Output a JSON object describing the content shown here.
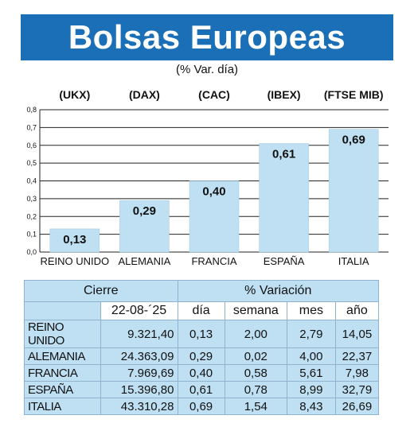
{
  "title": "Bolsas Europeas",
  "subtitle": "(% Var. día)",
  "chart_data": {
    "type": "bar",
    "categories": [
      "REINO UNIDO",
      "ALEMANIA",
      "FRANCIA",
      "ESPAÑA",
      "ITALIA"
    ],
    "index_labels": [
      "(UKX)",
      "(DAX)",
      "(CAC)",
      "(IBEX)",
      "(FTSE MIB)"
    ],
    "values": [
      0.13,
      0.29,
      0.4,
      0.61,
      0.69
    ],
    "value_labels": [
      "0,13",
      "0,29",
      "0,40",
      "0,61",
      "0,69"
    ],
    "ylim": [
      0,
      0.8
    ],
    "y_ticks": [
      "0,0",
      "0,1",
      "0,2",
      "0,3",
      "0,4",
      "0,5",
      "0,6",
      "0,7",
      "0,8"
    ],
    "grid": true,
    "bar_color": "#bfe0f2"
  },
  "table": {
    "header_cierre": "Cierre",
    "header_variacion": "% Variación",
    "date": "22-08-´25",
    "col_dia": "día",
    "col_semana": "semana",
    "col_mes": "mes",
    "col_anio": "año",
    "rows": [
      {
        "name": "REINO UNIDO",
        "cierre": "9.321,40",
        "dia": "0,13",
        "semana": "2,00",
        "mes": "2,79",
        "anio": "14,05"
      },
      {
        "name": "ALEMANIA",
        "cierre": "24.363,09",
        "dia": "0,29",
        "semana": "0,02",
        "mes": "4,00",
        "anio": "22,37"
      },
      {
        "name": "FRANCIA",
        "cierre": "7.969,69",
        "dia": "0,40",
        "semana": "0,58",
        "mes": "5,61",
        "anio": "7,98"
      },
      {
        "name": "ESPAÑA",
        "cierre": "15.396,80",
        "dia": "0,61",
        "semana": "0,78",
        "mes": "8,99",
        "anio": "32,79"
      },
      {
        "name": "ITALIA",
        "cierre": "43.310,28",
        "dia": "0,69",
        "semana": "1,54",
        "mes": "8,43",
        "anio": "26,69"
      }
    ]
  },
  "colors": {
    "banner": "#1a6fb6",
    "bar": "#bfe0f2",
    "table_fill": "#bfe0f2",
    "table_border": "#8fb2cf"
  }
}
